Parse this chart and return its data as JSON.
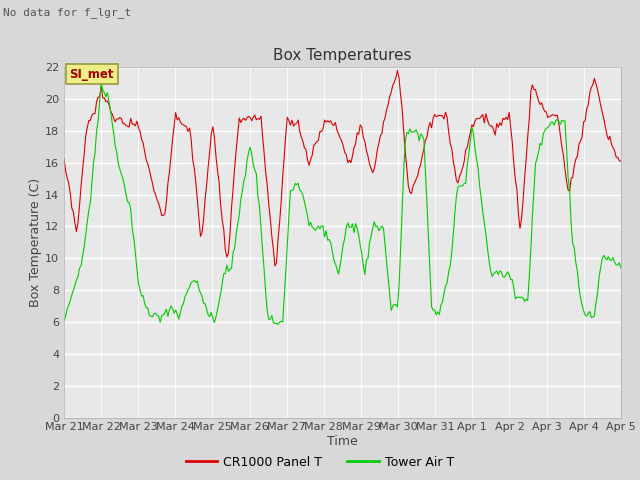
{
  "title": "Box Temperatures",
  "xlabel": "Time",
  "ylabel": "Box Temperature (C)",
  "top_left_text": "No data for f_lgr_t",
  "legend_box_text": "SI_met",
  "ylim": [
    0,
    22
  ],
  "yticks": [
    0,
    2,
    4,
    6,
    8,
    10,
    12,
    14,
    16,
    18,
    20,
    22
  ],
  "xtick_labels": [
    "Mar 21",
    "Mar 22",
    "Mar 23",
    "Mar 24",
    "Mar 25",
    "Mar 26",
    "Mar 27",
    "Mar 28",
    "Mar 29",
    "Mar 30",
    "Mar 31",
    "Apr 1",
    "Apr 2",
    "Apr 3",
    "Apr 4",
    "Apr 5"
  ],
  "fig_bg_color": "#d8d8d8",
  "plot_bg_color": "#e8e8e8",
  "grid_color": "#ffffff",
  "line1_color": "#dd0000",
  "line2_color": "#00cc00",
  "line1_label": "CR1000 Panel T",
  "line2_label": "Tower Air T",
  "title_fontsize": 11,
  "axis_fontsize": 9,
  "tick_fontsize": 8,
  "legend_fontsize": 9
}
